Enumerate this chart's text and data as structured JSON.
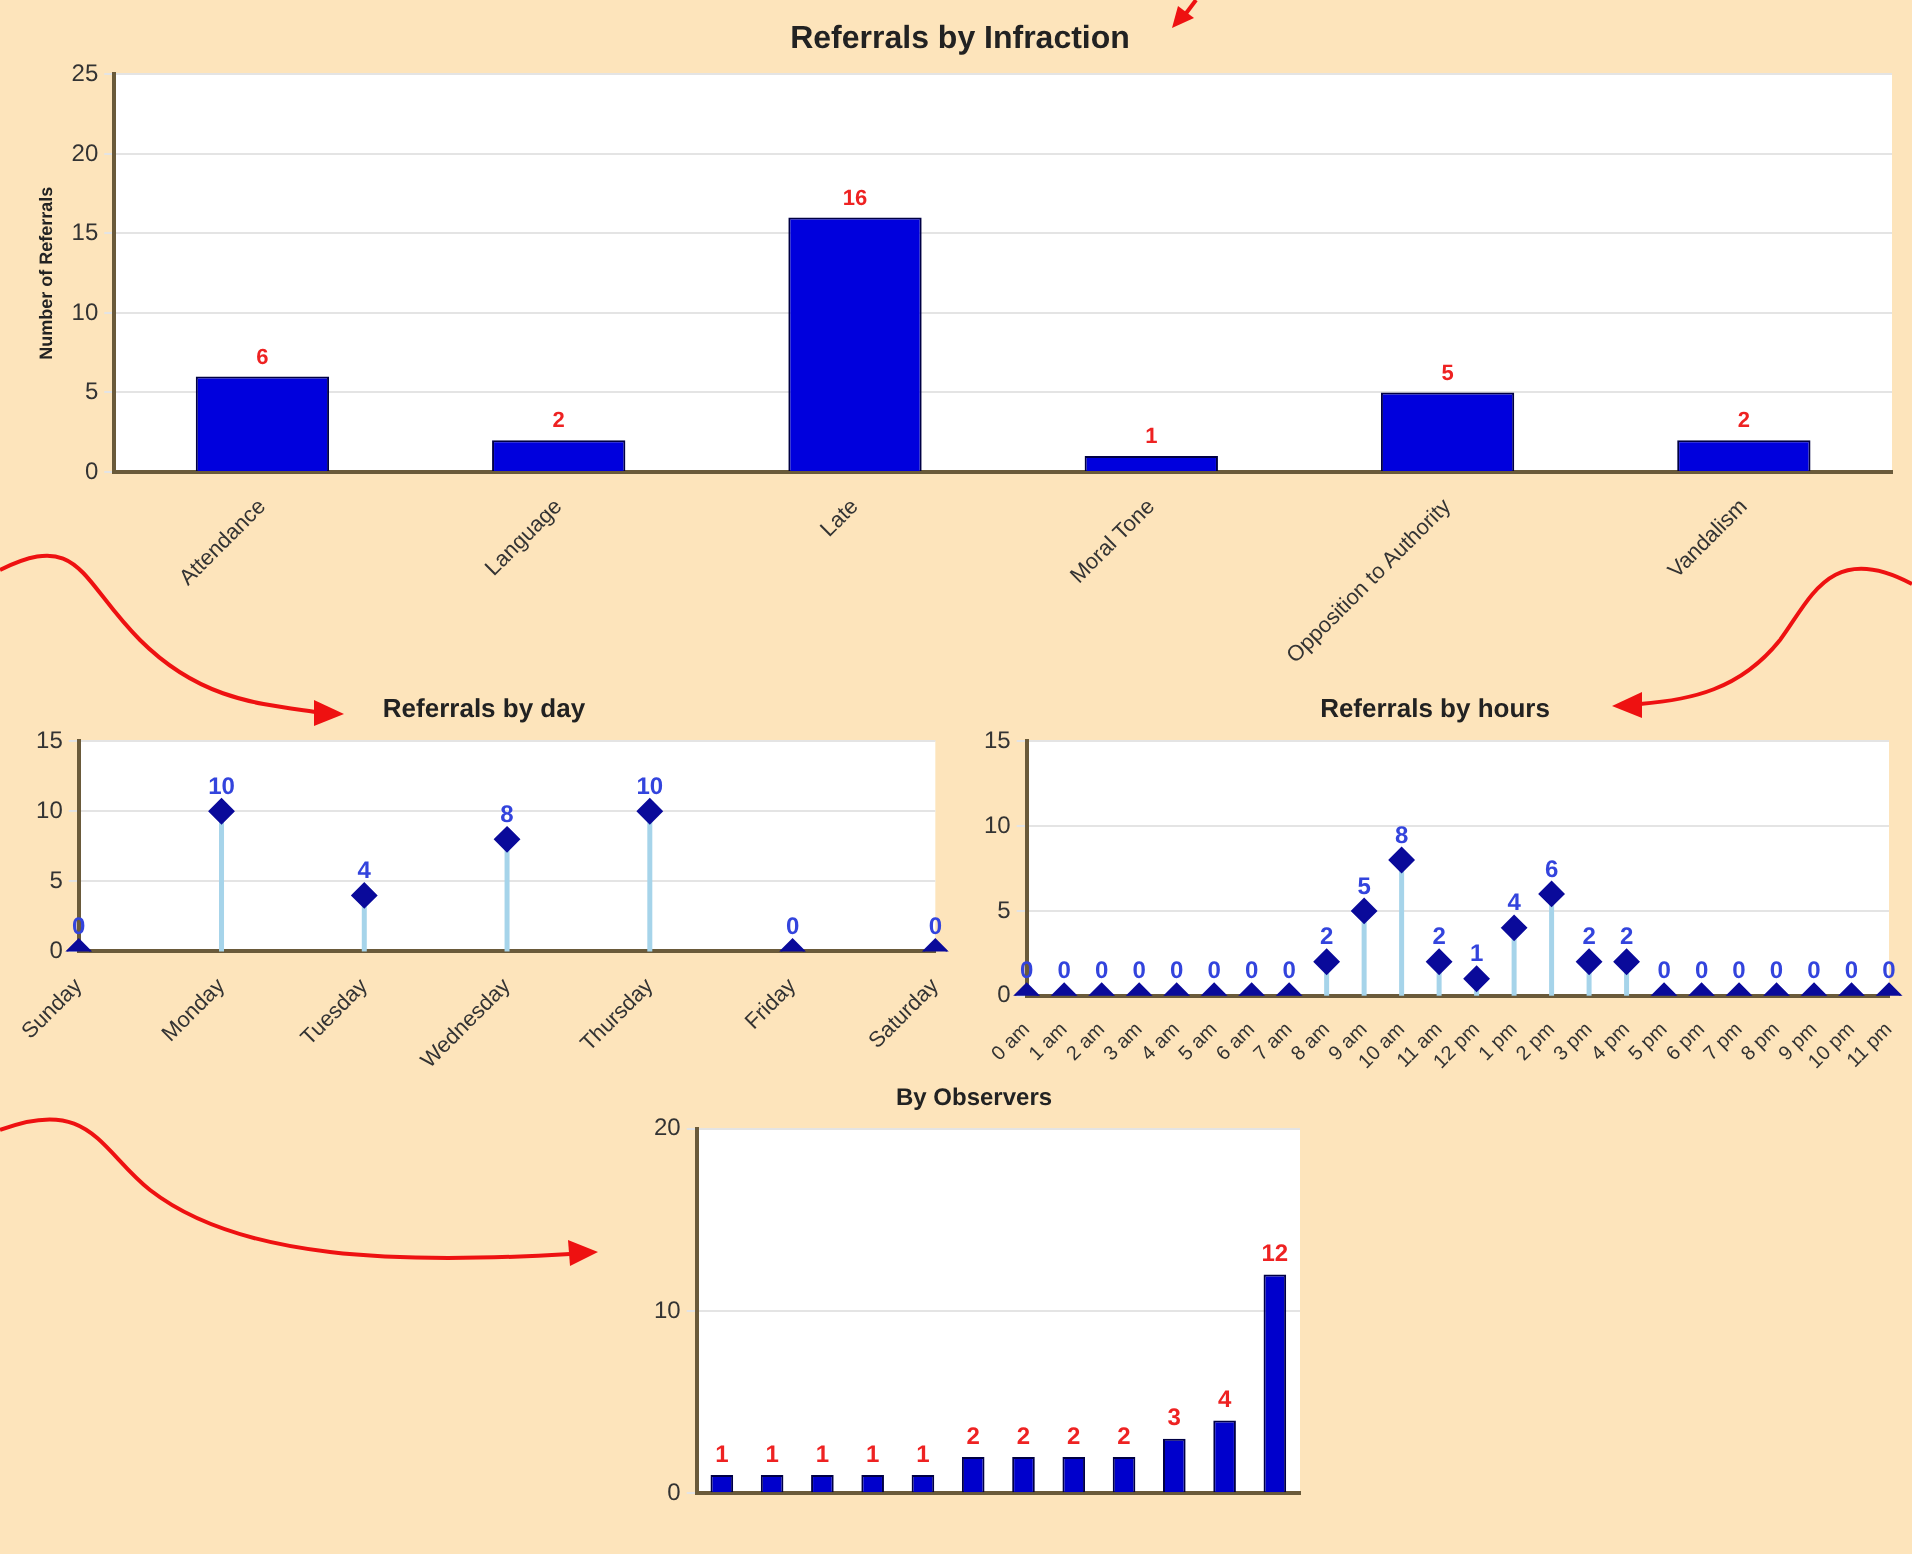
{
  "chart_data": [
    {
      "type": "bar",
      "title": "Referrals by Infraction",
      "ylabel": "Number of Referrals",
      "categories": [
        "Attendance",
        "Language",
        "Late",
        "Moral Tone",
        "Opposition to Authority",
        "Vandalism"
      ],
      "values": [
        6,
        2,
        16,
        1,
        5,
        2
      ],
      "color": "#0000dd",
      "ylim": [
        0,
        25
      ],
      "yticks": [
        0,
        5,
        10,
        15,
        20,
        25
      ],
      "grid": "y",
      "legend": false,
      "data_labels": true
    },
    {
      "type": "lollipop",
      "title": "Referrals by day",
      "categories": [
        "Sunday",
        "Monday",
        "Tuesday",
        "Wednesday",
        "Thursday",
        "Friday",
        "Saturday"
      ],
      "values": [
        0,
        10,
        4,
        8,
        10,
        0,
        0
      ],
      "color": "#0a0a9a",
      "marker": "diamond",
      "ylim": [
        0,
        15
      ],
      "yticks": [
        0,
        5,
        10,
        15
      ],
      "grid": "y",
      "legend": false,
      "data_labels": true
    },
    {
      "type": "lollipop",
      "title": "Referrals by hours",
      "categories": [
        "0 am",
        "1 am",
        "2 am",
        "3 am",
        "4 am",
        "5 am",
        "6 am",
        "7 am",
        "8 am",
        "9 am",
        "10 am",
        "11 am",
        "12 pm",
        "1 pm",
        "2 pm",
        "3 pm",
        "4 pm",
        "5 pm",
        "6 pm",
        "7 pm",
        "8 pm",
        "9 pm",
        "10 pm",
        "11 pm"
      ],
      "values": [
        0,
        0,
        0,
        0,
        0,
        0,
        0,
        0,
        2,
        5,
        8,
        2,
        1,
        4,
        6,
        2,
        2,
        0,
        0,
        0,
        0,
        0,
        0,
        0
      ],
      "color": "#0a0a9a",
      "marker": "diamond",
      "ylim": [
        0,
        15
      ],
      "yticks": [
        0,
        5,
        10,
        15
      ],
      "grid": "y",
      "legend": false,
      "data_labels": true
    },
    {
      "type": "bar",
      "title": "By Observers",
      "categories": [
        null,
        null,
        null,
        null,
        null,
        null,
        null,
        null,
        null,
        null,
        null,
        null
      ],
      "values": [
        1,
        1,
        1,
        1,
        1,
        2,
        2,
        2,
        2,
        3,
        4,
        12
      ],
      "color": "#0000cc",
      "ylim": [
        0,
        20
      ],
      "yticks": [
        0,
        10,
        20
      ],
      "grid": "y",
      "legend": false,
      "data_labels": true
    }
  ]
}
